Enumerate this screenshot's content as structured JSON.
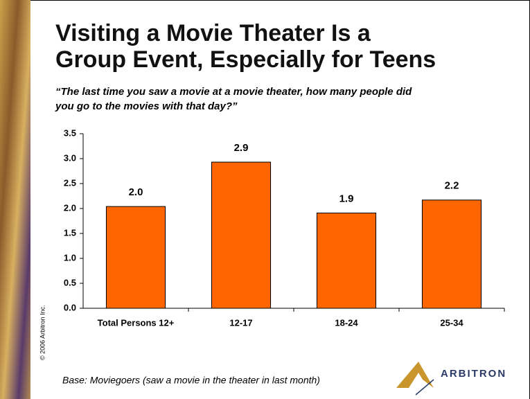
{
  "chart_data": {
    "type": "bar",
    "title": [
      "Visiting a Movie Theater Is a",
      "Group Event, Especially for Teens"
    ],
    "subtitle": [
      "“The last time you saw a movie at a movie theater, how many people did",
      "you go to the movies with that day?”"
    ],
    "categories": [
      "Total Persons 12+",
      "12-17",
      "18-24",
      "25-34"
    ],
    "values": [
      2.04,
      2.93,
      1.91,
      2.17
    ],
    "value_labels": [
      "2.0",
      "2.9",
      "1.9",
      "2.2"
    ],
    "color": "#ff6600",
    "ylim": [
      0,
      3.5
    ],
    "yticks": [
      {
        "value": 0,
        "label": "0.0"
      },
      {
        "value": 0.5,
        "label": "0.5"
      },
      {
        "value": 1,
        "label": "1.0"
      },
      {
        "value": 1.5,
        "label": "1.5"
      },
      {
        "value": 2,
        "label": "2.0"
      },
      {
        "value": 2.5,
        "label": "2.5"
      },
      {
        "value": 3,
        "label": "3.0"
      },
      {
        "value": 3.5,
        "label": "3.5"
      }
    ],
    "grid": false,
    "note": "Base:  Moviegoers (saw a movie in the theater in last month)",
    "copyright": "© 2006 Arbitron Inc.",
    "logo": "ARBITRON"
  }
}
